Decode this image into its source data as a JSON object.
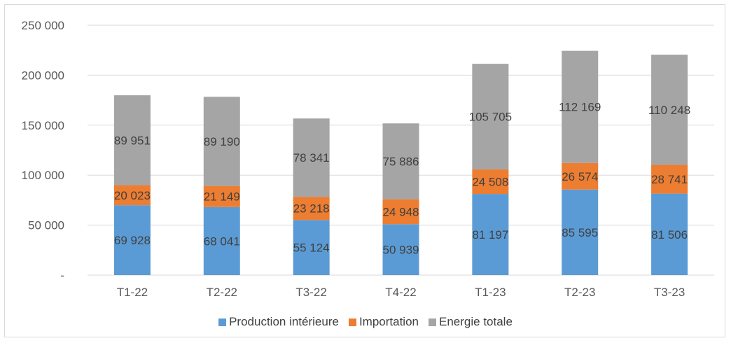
{
  "chart_data": {
    "type": "bar",
    "stacked": true,
    "categories": [
      "T1-22",
      "T2-22",
      "T3-22",
      "T4-22",
      "T1-23",
      "T2-23",
      "T3-23"
    ],
    "series": [
      {
        "name": "Production intérieure",
        "color": "#5b9bd5",
        "values": [
          69928,
          68041,
          55124,
          50939,
          81197,
          85595,
          81506
        ],
        "labels": [
          "69 928",
          "68 041",
          "55 124",
          "50 939",
          "81 197",
          "85 595",
          "81 506"
        ]
      },
      {
        "name": "Importation",
        "color": "#ed7d31",
        "values": [
          20023,
          21149,
          23218,
          24948,
          24508,
          26574,
          28741
        ],
        "labels": [
          "20 023",
          "21 149",
          "23 218",
          "24 948",
          "24 508",
          "26 574",
          "28 741"
        ]
      },
      {
        "name": "Energie totale",
        "color": "#a5a5a5",
        "values": [
          89951,
          89190,
          78341,
          75886,
          105705,
          112169,
          110248
        ],
        "labels": [
          "89 951",
          "89 190",
          "78 341",
          "75 886",
          "105 705",
          "112 169",
          "110 248"
        ]
      }
    ],
    "y_ticks": [
      {
        "value": 0,
        "label": "-"
      },
      {
        "value": 50000,
        "label": "50 000"
      },
      {
        "value": 100000,
        "label": "100 000"
      },
      {
        "value": 150000,
        "label": "150 000"
      },
      {
        "value": 200000,
        "label": "200 000"
      },
      {
        "value": 250000,
        "label": "250 000"
      }
    ],
    "ylim": [
      0,
      250000
    ],
    "grid": true,
    "legend_position": "bottom"
  }
}
